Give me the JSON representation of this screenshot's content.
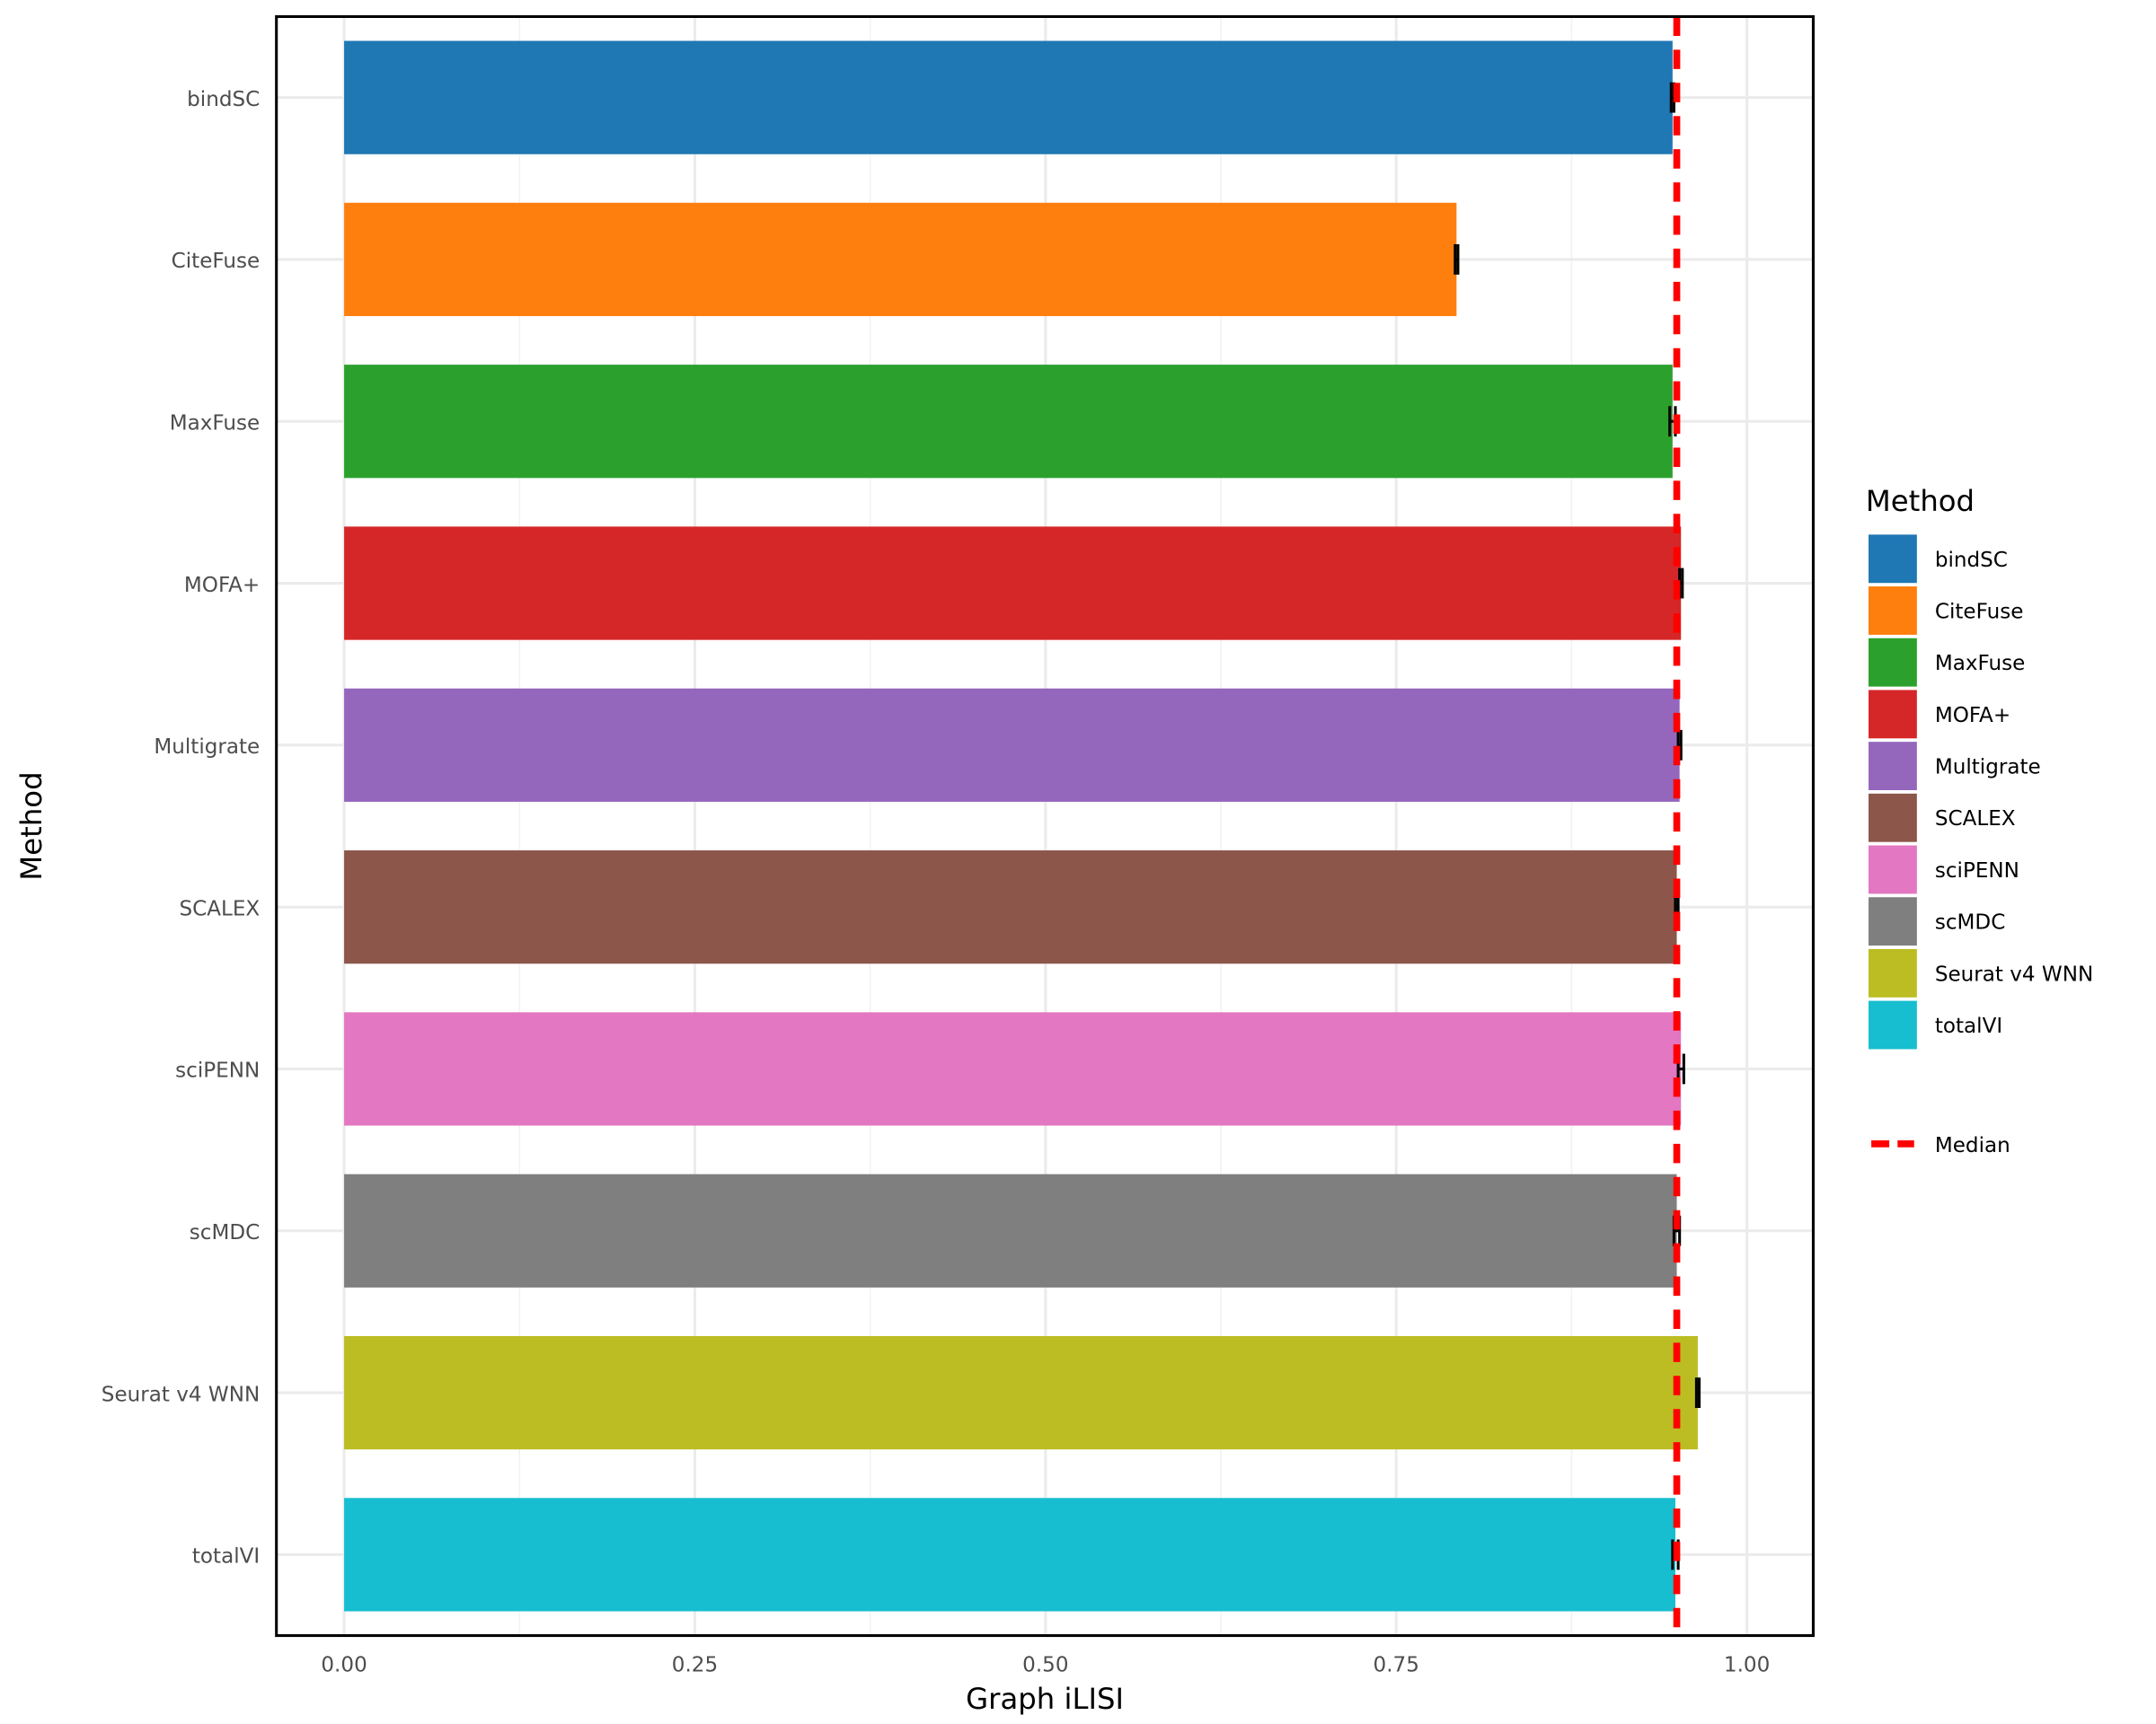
{
  "chart_data": {
    "type": "bar",
    "orientation": "horizontal",
    "xlabel": "Graph iLISI",
    "ylabel": "Method",
    "xlim": [
      -0.048,
      1.048
    ],
    "xticks": [
      0.0,
      0.25,
      0.5,
      0.75,
      1.0
    ],
    "xtick_labels": [
      "0.00",
      "0.25",
      "0.50",
      "0.75",
      "1.00"
    ],
    "grid": true,
    "categories": [
      "bindSC",
      "CiteFuse",
      "MaxFuse",
      "MOFA+",
      "Multigrate",
      "SCALEX",
      "sciPENN",
      "scMDC",
      "Seurat v4 WNN",
      "totalVI"
    ],
    "values": [
      0.947,
      0.793,
      0.947,
      0.953,
      0.952,
      0.95,
      0.953,
      0.95,
      0.965,
      0.949
    ],
    "errors": [
      0.001,
      0.001,
      0.002,
      0.001,
      0.001,
      0.001,
      0.002,
      0.002,
      0.001,
      0.002
    ],
    "colors": [
      "#1f77b4",
      "#ff7f0e",
      "#2ca02c",
      "#d62728",
      "#9467bd",
      "#8c564b",
      "#e377c2",
      "#7f7f7f",
      "#bcbd22",
      "#17becf"
    ],
    "median": 0.95,
    "median_color": "#ff0000",
    "legend": {
      "title": "Method",
      "position": "right",
      "median_label": "Median"
    }
  }
}
